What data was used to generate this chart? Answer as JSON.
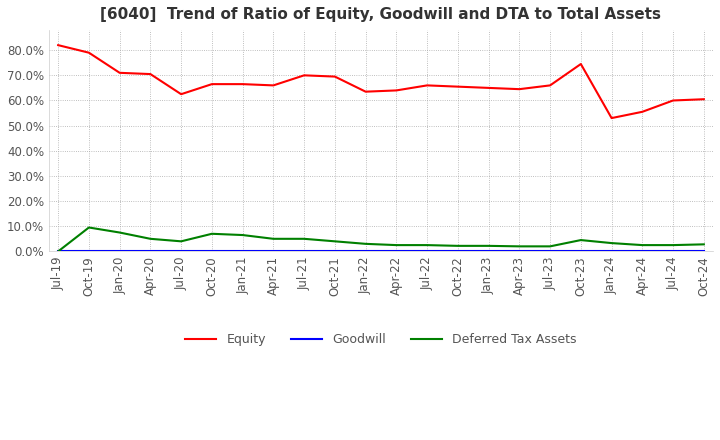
{
  "title": "[6040]  Trend of Ratio of Equity, Goodwill and DTA to Total Assets",
  "ylim": [
    0.0,
    0.88
  ],
  "yticks": [
    0.0,
    0.1,
    0.2,
    0.3,
    0.4,
    0.5,
    0.6,
    0.7,
    0.8
  ],
  "equity_color": "#FF0000",
  "goodwill_color": "#0000FF",
  "dta_color": "#008000",
  "background_color": "#FFFFFF",
  "grid_color": "#AAAAAA",
  "dates": [
    "Jul-19",
    "Oct-19",
    "Jan-20",
    "Apr-20",
    "Jul-20",
    "Oct-20",
    "Jan-21",
    "Apr-21",
    "Jul-21",
    "Oct-21",
    "Jan-22",
    "Apr-22",
    "Jul-22",
    "Oct-22",
    "Jan-23",
    "Apr-23",
    "Jul-23",
    "Oct-23",
    "Jan-24",
    "Apr-24",
    "Jul-24",
    "Oct-24"
  ],
  "equity": [
    0.82,
    0.79,
    0.71,
    0.705,
    0.625,
    0.665,
    0.665,
    0.66,
    0.7,
    0.695,
    0.635,
    0.64,
    0.66,
    0.655,
    0.65,
    0.645,
    0.66,
    0.745,
    0.53,
    0.555,
    0.6,
    0.605
  ],
  "goodwill": [
    0.002,
    0.002,
    0.002,
    0.002,
    0.002,
    0.002,
    0.002,
    0.002,
    0.002,
    0.002,
    0.002,
    0.002,
    0.002,
    0.002,
    0.002,
    0.002,
    0.002,
    0.002,
    0.002,
    0.002,
    0.002,
    0.002
  ],
  "dta": [
    0.0,
    0.095,
    0.075,
    0.05,
    0.04,
    0.07,
    0.065,
    0.05,
    0.05,
    0.04,
    0.03,
    0.025,
    0.025,
    0.022,
    0.022,
    0.02,
    0.02,
    0.045,
    0.033,
    0.025,
    0.025,
    0.028
  ],
  "legend_labels": [
    "Equity",
    "Goodwill",
    "Deferred Tax Assets"
  ],
  "title_fontsize": 11,
  "tick_fontsize": 8.5,
  "legend_fontsize": 9
}
